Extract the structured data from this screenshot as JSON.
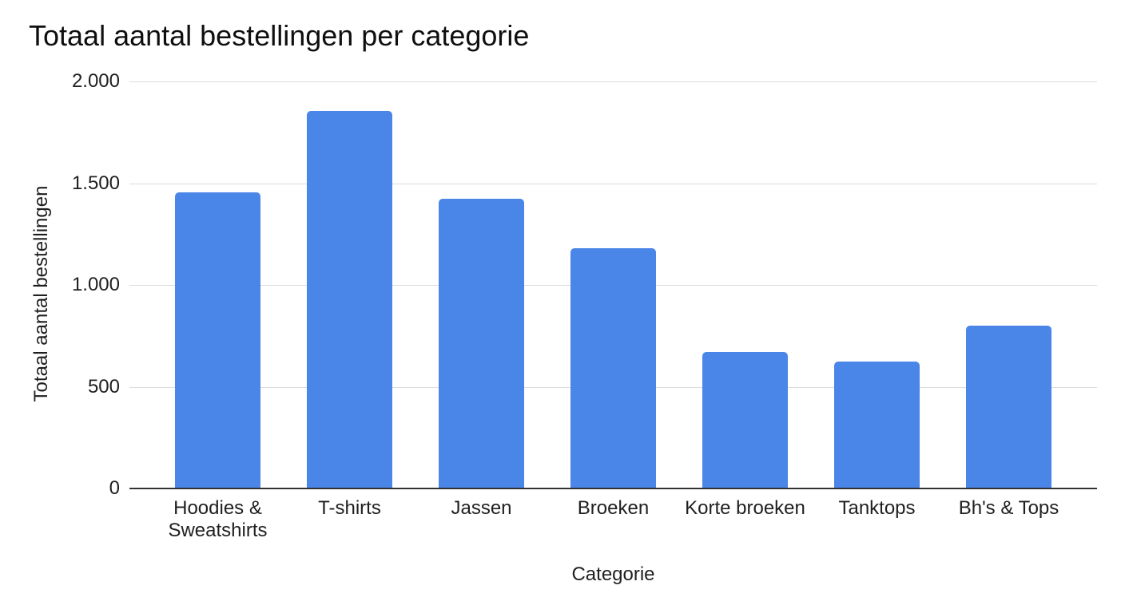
{
  "chart_data": {
    "type": "bar",
    "title": "Totaal aantal bestellingen per categorie",
    "xlabel": "Categorie",
    "ylabel": "Totaal aantal bestellingen",
    "categories": [
      "Hoodies & Sweatshirts",
      "T-shirts",
      "Jassen",
      "Broeken",
      "Korte broeken",
      "Tanktops",
      "Bh's & Tops"
    ],
    "values": [
      1455,
      1855,
      1425,
      1180,
      670,
      625,
      800
    ],
    "ylim": [
      0,
      2000
    ],
    "y_tick_labels": [
      "2.000",
      "1.500",
      "1.000",
      "500",
      "0"
    ],
    "y_tick_values": [
      2000,
      1500,
      1000,
      500,
      0
    ],
    "grid": "horizontal-gridlines-on",
    "legend": "none",
    "colors": {
      "bar": "#4a85e8",
      "gridline": "#dcdcdc",
      "axis_line": "#333333",
      "text": "#1f1f1f",
      "title": "#0f0f0f",
      "background": "#ffffff"
    }
  }
}
